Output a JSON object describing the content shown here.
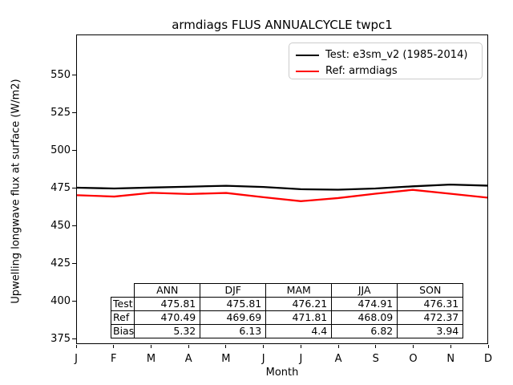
{
  "title": "armdiags FLUS ANNUALCYCLE twpc1",
  "legend": {
    "entries": [
      {
        "label": "Test: e3sm_v2 (1985-2014)",
        "color": "#000000"
      },
      {
        "label": "Ref: armdiags",
        "color": "#ff0000"
      }
    ]
  },
  "y_axis": {
    "label": "Upwelling longwave flux at surface (W/m2)",
    "ticks": [
      375,
      400,
      425,
      450,
      475,
      500,
      525,
      550
    ]
  },
  "x_axis": {
    "label": "Month",
    "tick_labels": [
      "J",
      "F",
      "M",
      "A",
      "M",
      "J",
      "J",
      "A",
      "S",
      "O",
      "N",
      "D"
    ]
  },
  "chart_data": {
    "type": "line",
    "title": "armdiags FLUS ANNUALCYCLE twpc1",
    "xlabel": "Month",
    "ylabel": "Upwelling longwave flux at surface (W/m2)",
    "categories": [
      "J",
      "F",
      "M",
      "A",
      "M",
      "J",
      "J",
      "A",
      "S",
      "O",
      "N",
      "D"
    ],
    "ylim": [
      371.8,
      577.1
    ],
    "yticks": [
      375,
      400,
      425,
      450,
      475,
      500,
      525,
      550
    ],
    "grid": false,
    "legend_position": "upper right",
    "series": [
      {
        "name": "Test: e3sm_v2 (1985-2014)",
        "color": "#000000",
        "values": [
          475.5,
          475.0,
          475.6,
          476.2,
          476.8,
          476.0,
          474.5,
          474.2,
          475.0,
          476.4,
          477.6,
          476.9
        ]
      },
      {
        "name": "Ref: armdiags",
        "color": "#ff0000",
        "values": [
          470.5,
          469.6,
          472.1,
          471.3,
          472.0,
          469.2,
          466.5,
          468.6,
          471.5,
          474.1,
          471.5,
          468.9
        ]
      }
    ]
  },
  "table": {
    "columns": [
      "ANN",
      "DJF",
      "MAM",
      "JJA",
      "SON"
    ],
    "rows": [
      {
        "label": "Test",
        "values": [
          "475.81",
          "475.81",
          "476.21",
          "474.91",
          "476.31"
        ]
      },
      {
        "label": "Ref",
        "values": [
          "470.49",
          "469.69",
          "471.81",
          "468.09",
          "472.37"
        ]
      },
      {
        "label": "Bias",
        "values": [
          "5.32",
          "6.13",
          "4.4",
          "6.82",
          "3.94"
        ]
      }
    ]
  }
}
